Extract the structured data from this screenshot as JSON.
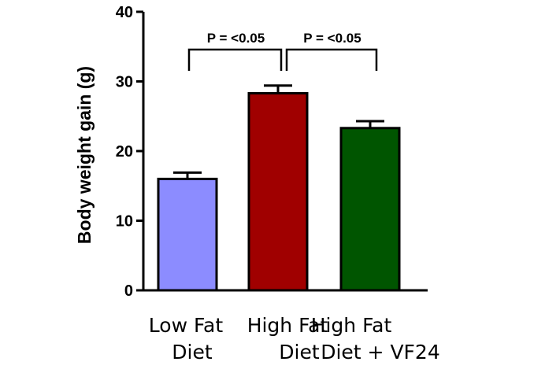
{
  "chart_data": {
    "type": "bar",
    "title": "",
    "xlabel": "",
    "ylabel": "Body weight gain (g)",
    "ylim": [
      0,
      40
    ],
    "yticks": [
      0,
      10,
      20,
      30,
      40
    ],
    "grid": false,
    "legend": "none",
    "categories": [
      [
        "Low Fat",
        "Diet"
      ],
      [
        "High Fat",
        "Diet"
      ],
      [
        "High Fat",
        "Diet + VF24"
      ]
    ],
    "values": [
      16.0,
      28.3,
      23.3
    ],
    "errors": [
      0.9,
      1.1,
      1.0
    ],
    "colors": [
      "#8c8cff",
      "#a00000",
      "#005500"
    ],
    "annotations": [
      {
        "from": 0,
        "to": 1,
        "text": "P = <0.05"
      },
      {
        "from": 1,
        "to": 2,
        "text": "P = <0.05"
      }
    ]
  }
}
